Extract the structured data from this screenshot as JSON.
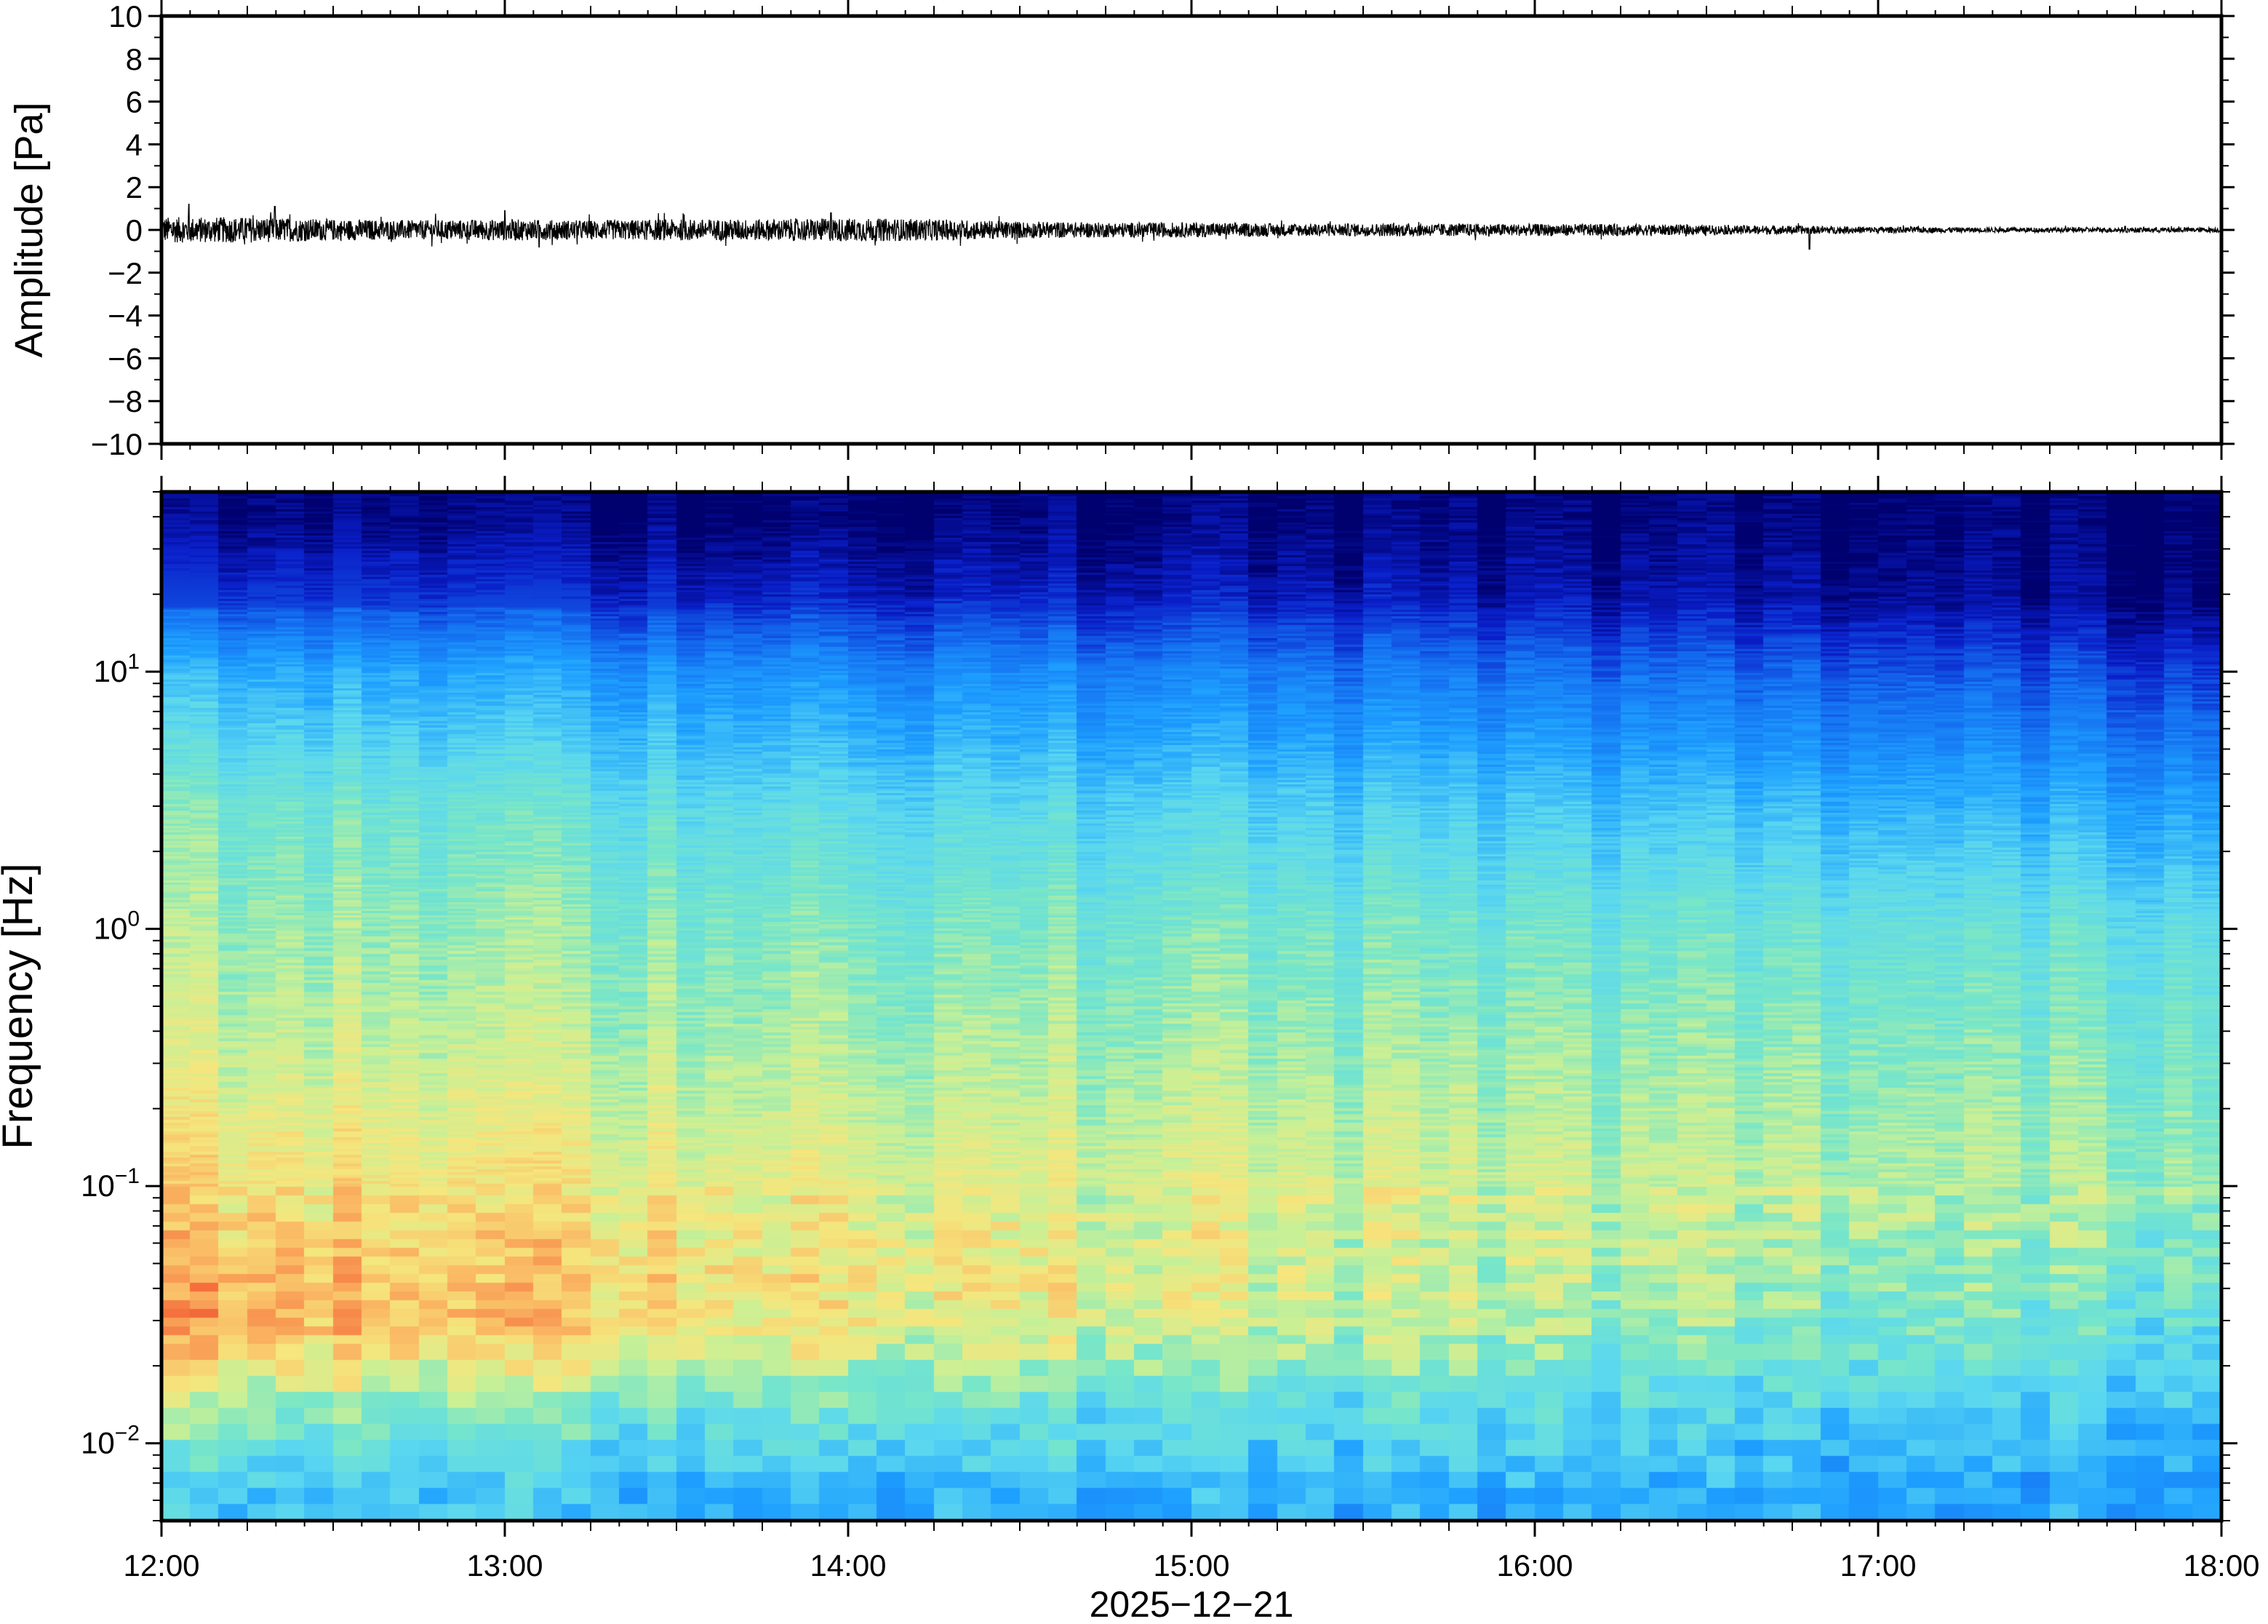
{
  "chart_data": [
    {
      "type": "line",
      "panel": "waveform",
      "ylabel": "Amplitude [Pa]",
      "ylim": [
        -10,
        10
      ],
      "yticks": [
        "10",
        "8",
        "6",
        "4",
        "2",
        "0",
        "−2",
        "−4",
        "−6",
        "−8",
        "−10"
      ],
      "ytick_values": [
        10,
        8,
        6,
        4,
        2,
        0,
        -2,
        -4,
        -6,
        -8,
        -10
      ],
      "x_range": [
        "2025-12-21 12:00",
        "2025-12-21 18:00"
      ],
      "grid": false,
      "series": [
        {
          "x_hours": [
            12.0,
            12.25,
            12.5,
            12.75,
            13.0,
            13.25,
            13.5,
            13.75,
            14.0,
            14.25,
            14.5,
            14.75,
            15.0,
            15.25,
            15.5,
            15.75,
            16.0,
            16.25,
            16.5,
            16.75,
            17.0,
            17.25,
            17.5,
            17.75,
            18.0
          ],
          "envelope_pa": [
            0.6,
            0.6,
            0.5,
            0.45,
            0.5,
            0.45,
            0.5,
            0.5,
            0.55,
            0.5,
            0.4,
            0.35,
            0.35,
            0.3,
            0.3,
            0.3,
            0.28,
            0.28,
            0.22,
            0.2,
            0.15,
            0.12,
            0.12,
            0.12,
            0.12
          ],
          "peak_spikes": [
            {
              "x_hours": 12.08,
              "value": 1.2
            },
            {
              "x_hours": 12.33,
              "value": 1.1
            },
            {
              "x_hours": 13.0,
              "value": 0.9
            },
            {
              "x_hours": 13.95,
              "value": 0.8
            },
            {
              "x_hours": 16.8,
              "value": -0.9
            },
            {
              "x_hours": 13.1,
              "value": -0.8
            }
          ]
        }
      ]
    },
    {
      "type": "heatmap",
      "panel": "spectrogram",
      "ylabel": "Frequency [Hz]",
      "yscale": "log",
      "ylim": [
        0.005,
        50
      ],
      "yticks": [
        {
          "base": "10",
          "exp": "1",
          "value": 10
        },
        {
          "base": "10",
          "exp": "0",
          "value": 1
        },
        {
          "base": "10",
          "exp": "−1",
          "value": 0.1
        },
        {
          "base": "10",
          "exp": "−2",
          "value": 0.01
        }
      ],
      "xlabel": "2025−12−21",
      "xticks": [
        "12:00",
        "13:00",
        "14:00",
        "15:00",
        "16:00",
        "17:00",
        "18:00"
      ],
      "x_range_hours": [
        12,
        18
      ],
      "colormap": "jet-like (dark blue low, red high)",
      "colors": {
        "low": "#00006e",
        "mid_low": "#1e90ff",
        "mid": "#74e6c8",
        "mid_high": "#f2e27a",
        "high": "#f26a3a"
      },
      "relative_power_profile": {
        "freq_hz": [
          40,
          20,
          10,
          3,
          1,
          0.3,
          0.1,
          0.05,
          0.03,
          0.015,
          0.007
        ],
        "power_at_12h": [
          0.02,
          0.15,
          0.38,
          0.55,
          0.6,
          0.66,
          0.74,
          0.8,
          0.82,
          0.6,
          0.42
        ],
        "power_at_18h": [
          0.0,
          0.02,
          0.15,
          0.35,
          0.5,
          0.56,
          0.6,
          0.55,
          0.5,
          0.42,
          0.33
        ]
      }
    }
  ]
}
